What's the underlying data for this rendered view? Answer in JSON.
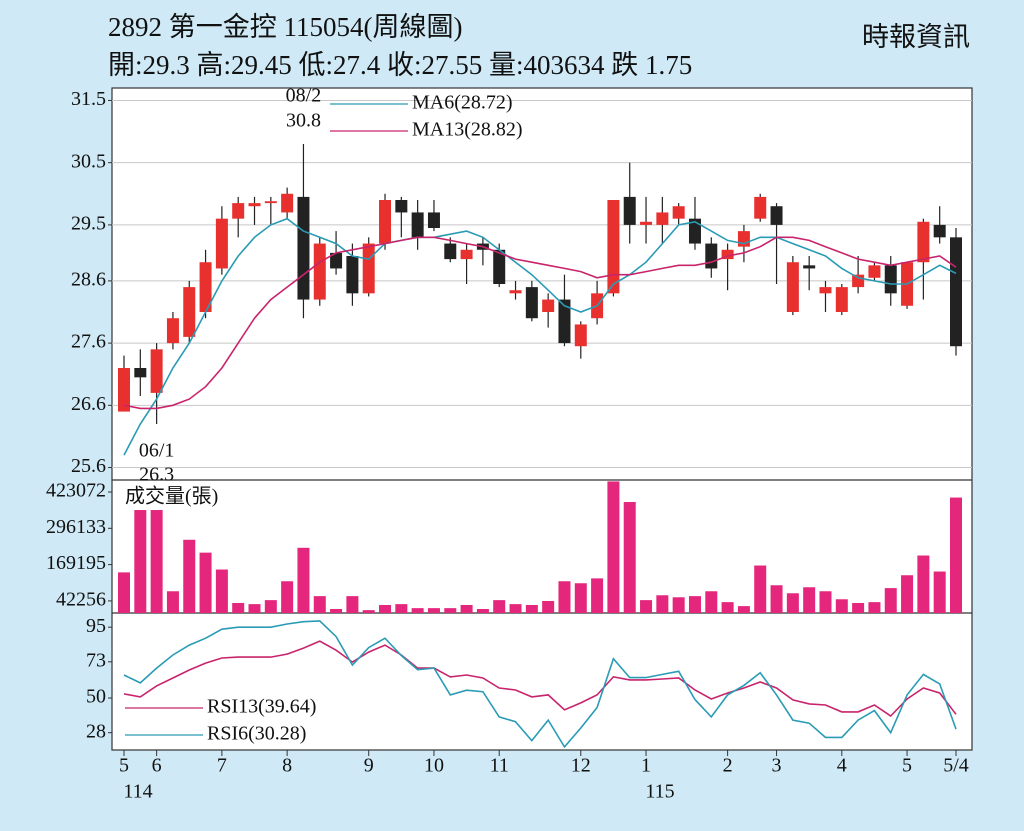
{
  "header": {
    "title": "2892  第一金控 115054(周線圖)",
    "summary": "開:29.3 高:29.45 低:27.4 收:27.55 量:403634 跌 1.75",
    "source": "時報資訊"
  },
  "chart_data": [
    {
      "type": "candlestick",
      "categories": [
        "5",
        null,
        "6",
        null,
        null,
        null,
        "7",
        null,
        null,
        null,
        "8",
        null,
        null,
        null,
        null,
        "9",
        null,
        null,
        null,
        "10",
        null,
        null,
        null,
        "11",
        null,
        null,
        null,
        null,
        "12",
        null,
        null,
        null,
        "1",
        null,
        null,
        null,
        null,
        "2",
        null,
        null,
        "3",
        null,
        null,
        null,
        "4",
        null,
        null,
        null,
        "5",
        null,
        null,
        "5/4"
      ],
      "year_labels": [
        "114",
        null,
        null,
        null,
        null,
        null,
        null,
        null,
        null,
        null,
        null,
        null,
        null,
        null,
        null,
        null,
        null,
        null,
        null,
        null,
        null,
        null,
        null,
        null,
        null,
        null,
        null,
        null,
        null,
        null,
        null,
        null,
        "115",
        null,
        null,
        null,
        null,
        null,
        null,
        null,
        null,
        null,
        null,
        null,
        null,
        null,
        null,
        null,
        null,
        null,
        null,
        null
      ],
      "open": [
        26.5,
        27.2,
        26.8,
        27.6,
        27.7,
        28.1,
        28.8,
        29.6,
        29.8,
        29.85,
        29.7,
        29.95,
        28.3,
        29.05,
        29.0,
        28.4,
        29.2,
        29.9,
        29.7,
        29.7,
        29.2,
        28.95,
        29.2,
        29.1,
        28.4,
        28.5,
        28.1,
        28.3,
        27.55,
        28.0,
        28.4,
        29.95,
        29.5,
        29.5,
        29.6,
        29.6,
        29.2,
        28.95,
        29.15,
        29.6,
        29.8,
        28.1,
        28.85,
        28.4,
        28.1,
        28.5,
        28.65,
        28.85,
        28.2,
        28.9,
        29.5,
        29.3
      ],
      "high": [
        27.4,
        27.5,
        27.6,
        28.1,
        28.6,
        29.1,
        29.8,
        29.95,
        29.95,
        29.95,
        30.1,
        30.8,
        29.3,
        29.4,
        29.2,
        29.3,
        30.0,
        29.95,
        29.9,
        29.9,
        29.3,
        29.2,
        29.3,
        29.2,
        28.6,
        28.6,
        28.4,
        28.7,
        27.95,
        28.6,
        29.9,
        30.5,
        29.95,
        29.95,
        29.85,
        29.95,
        29.3,
        29.2,
        29.5,
        30.0,
        29.85,
        29.0,
        29.0,
        28.6,
        28.55,
        29.0,
        28.9,
        29.0,
        28.9,
        29.6,
        29.8,
        29.45
      ],
      "low": [
        26.5,
        26.75,
        26.3,
        27.5,
        27.6,
        28.0,
        28.7,
        29.3,
        29.5,
        29.5,
        29.6,
        28.0,
        28.2,
        28.7,
        28.2,
        28.35,
        29.1,
        29.3,
        29.1,
        29.4,
        28.9,
        28.55,
        28.85,
        28.5,
        28.3,
        27.95,
        27.85,
        27.55,
        27.35,
        27.9,
        28.35,
        29.2,
        29.2,
        29.2,
        29.5,
        29.1,
        28.65,
        28.45,
        28.9,
        29.55,
        28.55,
        28.05,
        28.45,
        28.1,
        28.05,
        28.4,
        28.6,
        28.2,
        28.15,
        28.3,
        29.2,
        27.4
      ],
      "close": [
        27.2,
        27.05,
        27.5,
        28.0,
        28.5,
        28.9,
        29.6,
        29.85,
        29.85,
        29.88,
        30.0,
        28.3,
        29.2,
        28.8,
        28.4,
        29.2,
        29.9,
        29.7,
        29.3,
        29.45,
        28.95,
        29.1,
        29.1,
        28.55,
        28.45,
        28.0,
        28.3,
        27.6,
        27.9,
        28.4,
        29.9,
        29.5,
        29.55,
        29.7,
        29.8,
        29.2,
        28.8,
        29.1,
        29.4,
        29.95,
        29.5,
        28.9,
        28.8,
        28.5,
        28.5,
        28.7,
        28.85,
        28.4,
        28.9,
        29.55,
        29.3,
        27.55
      ],
      "up_color": "#e8312f",
      "down_color": "#222222",
      "series": [
        {
          "name": "MA6(28.72)",
          "color": "#2a9bb5",
          "values": [
            25.8,
            26.3,
            26.7,
            27.2,
            27.6,
            28.1,
            28.6,
            29.0,
            29.3,
            29.5,
            29.6,
            29.4,
            29.3,
            29.2,
            29.0,
            28.95,
            29.2,
            29.25,
            29.3,
            29.3,
            29.35,
            29.4,
            29.3,
            29.1,
            28.9,
            28.7,
            28.45,
            28.2,
            28.1,
            28.2,
            28.55,
            28.7,
            28.9,
            29.2,
            29.5,
            29.55,
            29.4,
            29.25,
            29.2,
            29.3,
            29.3,
            29.2,
            29.1,
            29.0,
            28.8,
            28.65,
            28.6,
            28.55,
            28.55,
            28.7,
            28.85,
            28.72
          ]
        },
        {
          "name": "MA13(28.82)",
          "color": "#c8246c",
          "values": [
            26.6,
            26.55,
            26.55,
            26.6,
            26.7,
            26.9,
            27.2,
            27.6,
            28.0,
            28.3,
            28.5,
            28.7,
            28.9,
            29.05,
            29.1,
            29.15,
            29.2,
            29.25,
            29.3,
            29.3,
            29.25,
            29.2,
            29.15,
            29.05,
            28.95,
            28.9,
            28.85,
            28.8,
            28.75,
            28.65,
            28.7,
            28.7,
            28.75,
            28.8,
            28.85,
            28.85,
            28.9,
            29.0,
            29.05,
            29.15,
            29.3,
            29.3,
            29.25,
            29.15,
            29.05,
            28.95,
            28.9,
            28.85,
            28.9,
            28.95,
            29.0,
            28.82
          ]
        }
      ],
      "annotations": [
        {
          "label": "08/2",
          "high": 30.8
        },
        {
          "label": "06/1",
          "low": 26.3
        }
      ],
      "ylim": [
        25.4,
        31.7
      ],
      "yticks": [
        25.6,
        26.6,
        27.6,
        28.6,
        29.5,
        30.5,
        31.5
      ],
      "grid": true
    },
    {
      "type": "bar",
      "title": "成交量(張)",
      "color": "#e4267c",
      "values": [
        142000,
        360000,
        360000,
        76000,
        256000,
        211000,
        152000,
        35000,
        31000,
        45000,
        111000,
        228000,
        59000,
        14000,
        59000,
        10000,
        28000,
        31000,
        17000,
        17000,
        17000,
        28000,
        14000,
        45000,
        31000,
        28000,
        42000,
        111000,
        104000,
        121000,
        460000,
        388000,
        45000,
        62000,
        55000,
        59000,
        76000,
        38000,
        24000,
        166000,
        97000,
        69000,
        90000,
        76000,
        48000,
        35000,
        38000,
        87000,
        132000,
        201000,
        145000,
        403634
      ],
      "ylim": [
        0,
        465000
      ],
      "yticks": [
        42256,
        169195,
        296133,
        423072
      ],
      "grid": false
    },
    {
      "type": "line",
      "series": [
        {
          "name": "RSI13(39.64)",
          "color": "#c8246c",
          "values": [
            52.6,
            50.7,
            57.7,
            62.7,
            67.8,
            72.2,
            75.4,
            76,
            76,
            76,
            77.9,
            81.7,
            86.1,
            80.4,
            72.8,
            79.2,
            83.6,
            77.3,
            69,
            69,
            63.4,
            64.6,
            62.7,
            56.4,
            55.1,
            50.7,
            52,
            42.5,
            46.9,
            52,
            63.4,
            61.5,
            61.5,
            62.1,
            62.7,
            55.1,
            49.4,
            53.2,
            56.4,
            60.2,
            56.4,
            48.8,
            46.3,
            45.6,
            41.2,
            41.2,
            45.6,
            38.6,
            49.4,
            56.4,
            53.2,
            39.64
          ]
        },
        {
          "name": "RSI6(30.28)",
          "color": "#2a9bb5",
          "values": [
            64.6,
            59.6,
            69,
            77.3,
            83.6,
            88,
            93.7,
            95,
            95,
            95,
            97,
            98.5,
            99,
            89,
            71,
            82,
            88,
            77,
            68,
            69,
            52,
            55,
            54,
            38,
            35,
            23,
            36,
            19,
            31,
            44,
            75,
            63,
            63,
            65,
            67,
            49,
            38,
            52,
            58,
            66,
            52,
            36,
            34,
            25,
            25,
            36,
            42,
            28,
            52,
            65,
            59,
            30.28
          ]
        }
      ],
      "ylim": [
        17,
        104
      ],
      "yticks": [
        28,
        50,
        73,
        95
      ],
      "grid": false
    }
  ]
}
